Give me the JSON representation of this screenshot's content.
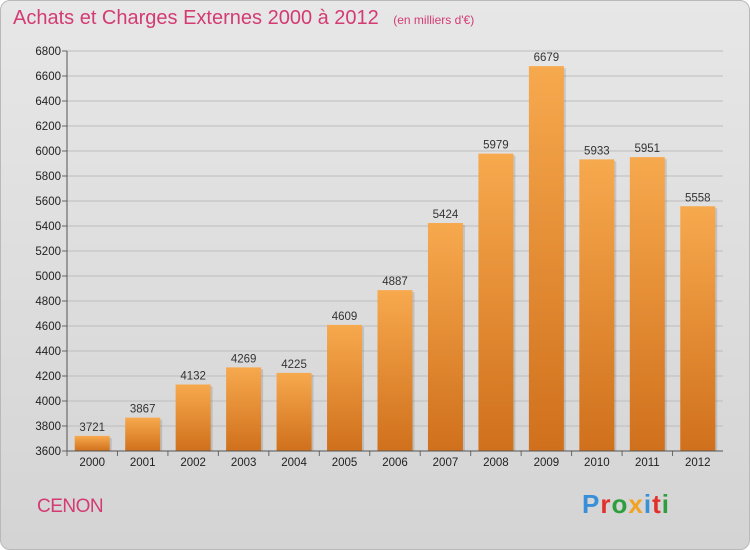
{
  "header": {
    "title": "Achats et Charges Externes 2000 à 2012",
    "subtitle": "(en milliers d'€)"
  },
  "footer": {
    "city": "CENON",
    "logo": "Proxiti",
    "logo_colors": [
      "#3a8fd9",
      "#e0312b",
      "#2e9f3e",
      "#f2a224",
      "#3a8fd9",
      "#e0312b",
      "#2e9f3e"
    ]
  },
  "colors": {
    "bar_top": "#f7a94e",
    "bar_bottom": "#d0701c",
    "grid": "#bdbdbd",
    "title": "#d33b72"
  },
  "chart_data": {
    "type": "bar",
    "categories": [
      "2000",
      "2001",
      "2002",
      "2003",
      "2004",
      "2005",
      "2006",
      "2007",
      "2008",
      "2009",
      "2010",
      "2011",
      "2012"
    ],
    "values": [
      3721,
      3867,
      4132,
      4269,
      4225,
      4609,
      4887,
      5424,
      5979,
      6679,
      5933,
      5951,
      5558
    ],
    "ylim": [
      3600,
      6800
    ],
    "yticks": [
      3600,
      3800,
      4000,
      4200,
      4400,
      4600,
      4800,
      5000,
      5200,
      5400,
      5600,
      5800,
      6000,
      6200,
      6400,
      6600,
      6800
    ],
    "grid": true,
    "show_value_labels": true
  }
}
